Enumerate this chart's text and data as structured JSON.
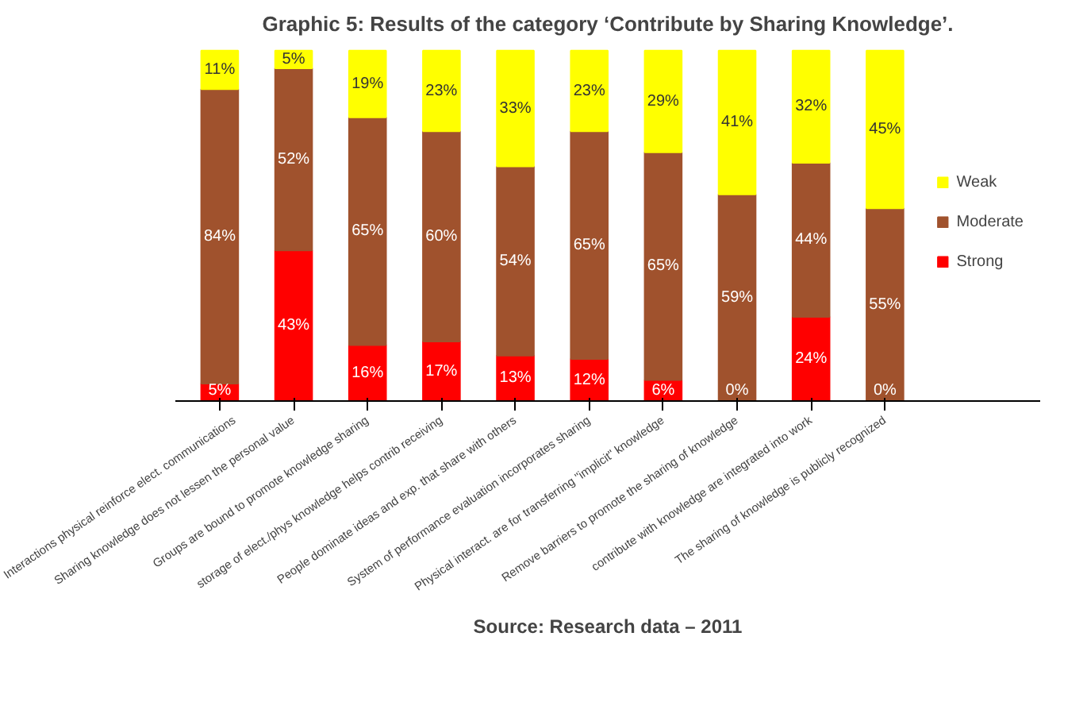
{
  "chart_data": {
    "type": "bar",
    "stacked": true,
    "title": "Graphic 5: Results of the category ‘Contribute by Sharing Knowledge’.",
    "categories": [
      "Interactions physical reinforce elect. communications",
      "Sharing knowledge does not lessen the personal value",
      "Groups are bound to promote knowledge sharing",
      "storage of elect./phys knowledge helps contrib receiving",
      "People dominate ideas and exp. that share with others",
      "System of performance evaluation incorporates sharing",
      "Physical interact. are for transferring \"implicit\" knowledge",
      "Remove barriers to promote the sharing of knowledge",
      "contribute with knowledge are integrated into work",
      "The sharing of knowledge is publicly recognized"
    ],
    "series": [
      {
        "name": "Strong",
        "color": "#ff0000",
        "values": [
          5,
          43,
          16,
          17,
          13,
          12,
          6,
          0,
          24,
          0
        ],
        "value_labels": [
          "5%",
          "43%",
          "16%",
          "17%",
          "13%",
          "12%",
          "6%",
          "0%",
          "24%",
          "0%"
        ]
      },
      {
        "name": "Moderate",
        "color": "#a0522d",
        "values": [
          84,
          52,
          65,
          60,
          54,
          65,
          65,
          59,
          44,
          55
        ],
        "value_labels": [
          "84%",
          "52%",
          "65%",
          "60%",
          "54%",
          "65%",
          "65%",
          "59%",
          "44%",
          "55%"
        ]
      },
      {
        "name": "Weak",
        "color": "#ffff00",
        "values": [
          11,
          5,
          19,
          23,
          33,
          23,
          29,
          41,
          32,
          45
        ],
        "value_labels": [
          "11%",
          "5%",
          "19%",
          "23%",
          "33%",
          "23%",
          "29%",
          "41%",
          "32%",
          "45%"
        ]
      }
    ],
    "legend": "right",
    "grid": false,
    "annotations": [
      "Source: Research data – 2011"
    ]
  }
}
